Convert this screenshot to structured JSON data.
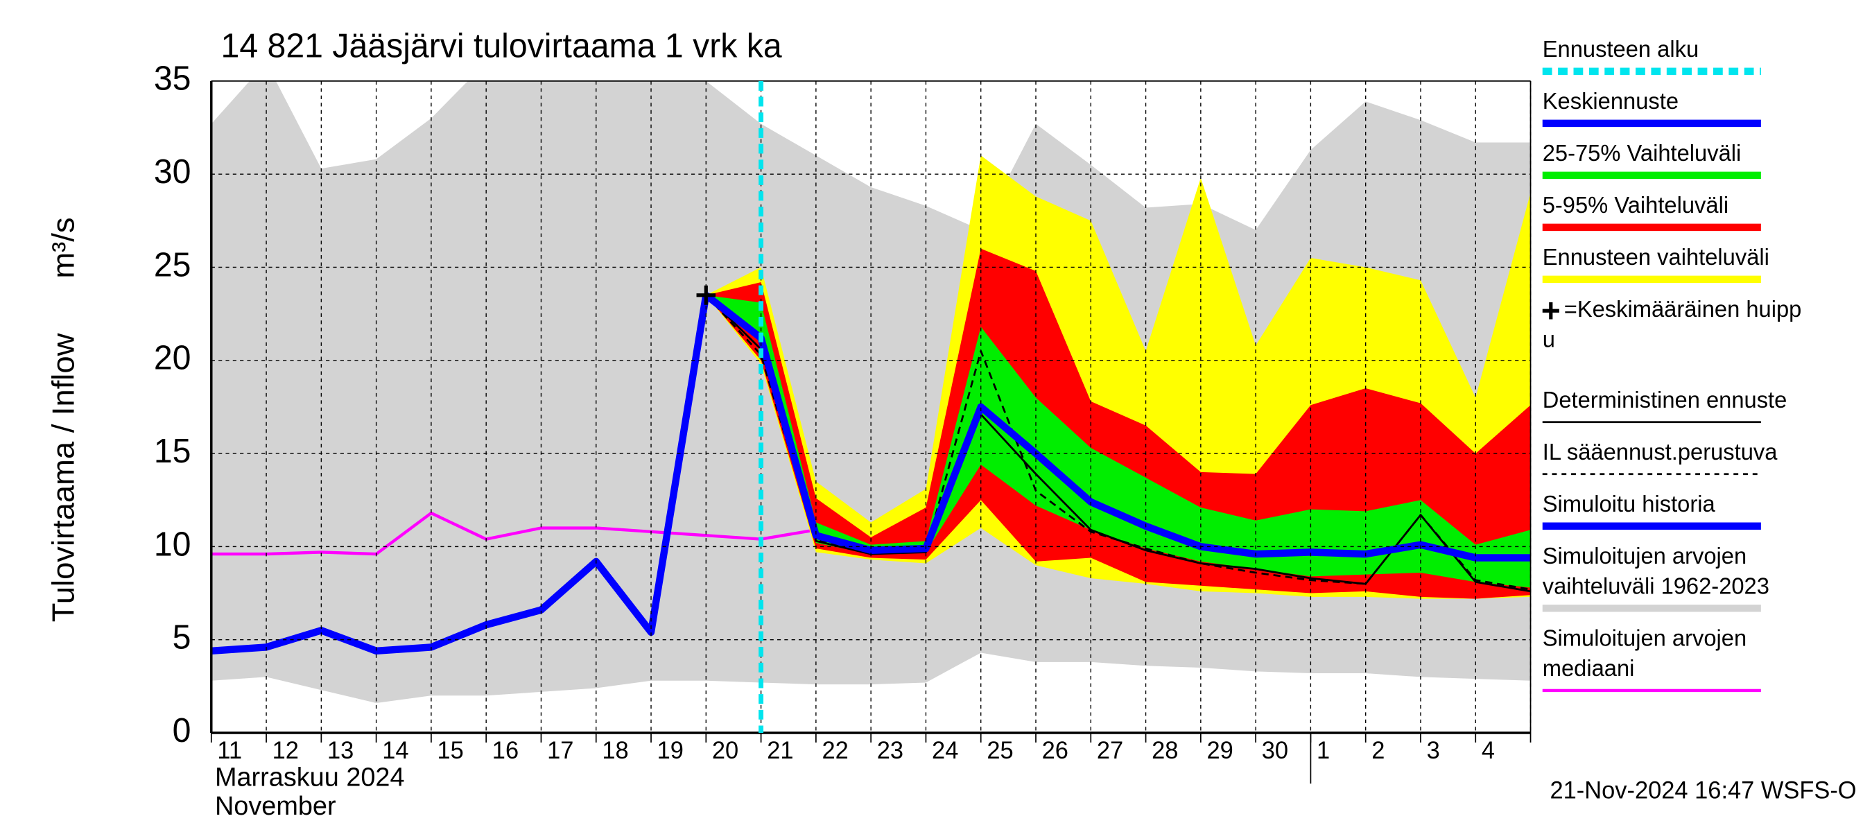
{
  "chart_data": {
    "type": "line",
    "title": "14 821 Jääsjärvi tulovirtaama 1 vrk ka",
    "y_label": "Tulovirtaama / Inflow",
    "y_unit": "m³/s",
    "x_label": [
      "Marraskuu 2024",
      "November"
    ],
    "footer": "21-Nov-2024 16:47 WSFS-O",
    "categories": [
      "11",
      "12",
      "13",
      "14",
      "15",
      "16",
      "17",
      "18",
      "19",
      "20",
      "21",
      "22",
      "23",
      "24",
      "25",
      "26",
      "27",
      "28",
      "29",
      "30",
      "1",
      "2",
      "3",
      "4",
      null
    ],
    "ylim": [
      0,
      35
    ],
    "yticks": [
      0,
      5,
      10,
      15,
      20,
      25,
      30,
      35
    ],
    "grid": true,
    "series": [
      {
        "name": [
          "Ennusteen alku"
        ],
        "kind": "vline",
        "color": "#00e5ee",
        "dashed": true,
        "at": "21"
      },
      {
        "name": [
          "Keskiennuste"
        ],
        "kind": "line",
        "color": "#0000ff",
        "thick": true,
        "values": [
          null,
          null,
          null,
          null,
          null,
          null,
          null,
          null,
          null,
          23.5,
          21.2,
          10.6,
          9.8,
          9.9,
          17.5,
          15.0,
          12.4,
          11.1,
          10.0,
          9.6,
          9.7,
          9.6,
          10.1,
          9.4,
          9.4
        ]
      },
      {
        "name": [
          "25-75% Vaihteluväli"
        ],
        "kind": "band",
        "color": "#00ee00",
        "lower": [
          null,
          null,
          null,
          null,
          null,
          null,
          null,
          null,
          null,
          23.5,
          21.0,
          10.2,
          9.6,
          9.7,
          14.4,
          12.2,
          10.9,
          9.9,
          9.2,
          8.8,
          8.4,
          8.5,
          8.6,
          8.1,
          7.8
        ],
        "upper": [
          null,
          null,
          null,
          null,
          null,
          null,
          null,
          null,
          null,
          23.5,
          23.1,
          11.3,
          10.1,
          10.3,
          21.8,
          18.0,
          15.3,
          13.7,
          12.1,
          11.4,
          12.0,
          11.9,
          12.5,
          10.1,
          10.9
        ]
      },
      {
        "name": [
          "5-95% Vaihteluväli"
        ],
        "kind": "band",
        "color": "#ff0000",
        "lower": [
          null,
          null,
          null,
          null,
          null,
          null,
          null,
          null,
          null,
          23.5,
          20.0,
          9.9,
          9.4,
          9.3,
          12.5,
          9.2,
          9.4,
          8.1,
          7.9,
          7.7,
          7.5,
          7.6,
          7.3,
          7.2,
          7.4
        ],
        "upper": [
          null,
          null,
          null,
          null,
          null,
          null,
          null,
          null,
          null,
          23.5,
          24.2,
          12.6,
          10.5,
          12.1,
          26.0,
          24.8,
          17.8,
          16.5,
          14.0,
          13.9,
          17.6,
          18.5,
          17.7,
          15.0,
          17.6
        ]
      },
      {
        "name": [
          "Ennusteen vaihteluväli"
        ],
        "kind": "band",
        "color": "#ffff00",
        "lower": [
          null,
          null,
          null,
          null,
          null,
          null,
          null,
          null,
          null,
          23.5,
          19.8,
          9.7,
          9.3,
          9.1,
          11.0,
          9.0,
          8.3,
          8.0,
          7.6,
          7.5,
          7.3,
          7.3,
          7.2,
          7.2,
          7.3
        ],
        "upper": [
          null,
          null,
          null,
          null,
          null,
          null,
          null,
          null,
          null,
          23.5,
          25.0,
          13.5,
          11.3,
          13.1,
          31.0,
          28.8,
          27.5,
          20.5,
          29.8,
          20.8,
          25.5,
          25.0,
          24.3,
          18.0,
          29.0
        ]
      },
      {
        "name": [
          "=Keskimääräinen huipp",
          "u"
        ],
        "kind": "marker",
        "color": "#000000",
        "values": [
          null,
          null,
          null,
          null,
          null,
          null,
          null,
          null,
          null,
          23.5,
          null,
          null,
          null,
          null,
          null,
          null,
          null,
          null,
          null,
          null,
          null,
          null,
          null,
          null,
          null
        ]
      },
      {
        "name": [
          "Deterministinen ennuste"
        ],
        "kind": "line",
        "color": "#000000",
        "values": [
          null,
          null,
          null,
          null,
          null,
          null,
          null,
          null,
          null,
          23.5,
          20.6,
          10.3,
          9.6,
          9.7,
          17.1,
          13.9,
          10.9,
          9.8,
          9.1,
          8.8,
          8.3,
          8.0,
          11.7,
          8.1,
          7.6
        ]
      },
      {
        "name": [
          "IL sääennust.perustuva"
        ],
        "kind": "line",
        "color": "#000000",
        "dashed": true,
        "values": [
          null,
          null,
          null,
          null,
          null,
          null,
          null,
          null,
          null,
          23.5,
          20.3,
          10.4,
          9.7,
          9.8,
          20.5,
          13.0,
          10.8,
          9.9,
          9.1,
          8.6,
          8.2,
          8.0,
          11.7,
          8.2,
          7.7
        ]
      },
      {
        "name": [
          "Simuloitu historia"
        ],
        "kind": "line",
        "color": "#0000ff",
        "thick": true,
        "values": [
          4.4,
          4.6,
          5.5,
          4.4,
          4.6,
          5.8,
          6.6,
          9.2,
          5.4,
          23.5,
          null,
          null,
          null,
          null,
          null,
          null,
          null,
          null,
          null,
          null,
          null,
          null,
          null,
          null,
          null
        ]
      },
      {
        "name": [
          "Simuloitujen arvojen",
          "vaihteluväli 1962-2023"
        ],
        "kind": "band",
        "color": "#d3d3d3",
        "lower": [
          2.8,
          3.0,
          2.3,
          1.6,
          2.0,
          2.0,
          2.2,
          2.4,
          2.8,
          2.8,
          2.7,
          2.6,
          2.6,
          2.7,
          4.3,
          3.8,
          3.8,
          3.6,
          3.5,
          3.3,
          3.2,
          3.2,
          3.0,
          2.9,
          2.8
        ],
        "upper": [
          32.7,
          36,
          30.3,
          30.8,
          33.0,
          36,
          36,
          36,
          36,
          35,
          32.7,
          31.0,
          29.3,
          28.3,
          27.0,
          32.7,
          30.5,
          28.2,
          28.4,
          27.0,
          31.3,
          33.9,
          32.9,
          31.7,
          31.7
        ]
      },
      {
        "name": [
          "Simuloitujen arvojen",
          "mediaani"
        ],
        "kind": "line",
        "color": "#ff00ff",
        "values": [
          9.6,
          9.6,
          9.7,
          9.6,
          11.8,
          10.4,
          11.0,
          11.0,
          10.8,
          10.6,
          10.4,
          10.9,
          10.9,
          10.9,
          11.1,
          11.0,
          10.7,
          10.7,
          10.6,
          10.4,
          11.2,
          10.5,
          10.3,
          11.5,
          11.7
        ]
      }
    ]
  }
}
